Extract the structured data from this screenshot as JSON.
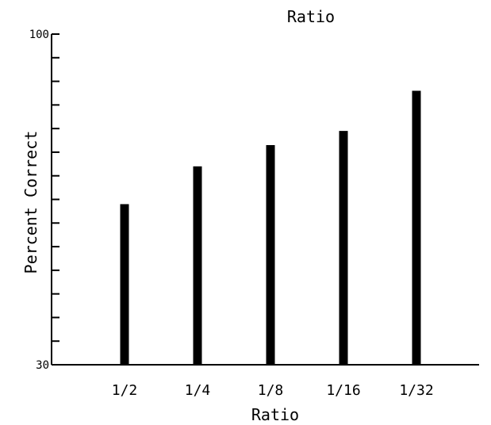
{
  "chart_data": {
    "type": "bar",
    "title": "Ratio",
    "xlabel": "Ratio",
    "ylabel": "Percent Correct",
    "categories": [
      "1/2",
      "1/4",
      "1/8",
      "1/16",
      "1/32"
    ],
    "values": [
      64,
      72,
      76.5,
      79.5,
      88
    ],
    "ylim": [
      30,
      100
    ],
    "ytick_labels": [
      {
        "value": 30,
        "label": "30"
      },
      {
        "value": 100,
        "label": "100"
      }
    ],
    "ytick_step": 5,
    "grid": false,
    "bar_color": "#000000"
  }
}
